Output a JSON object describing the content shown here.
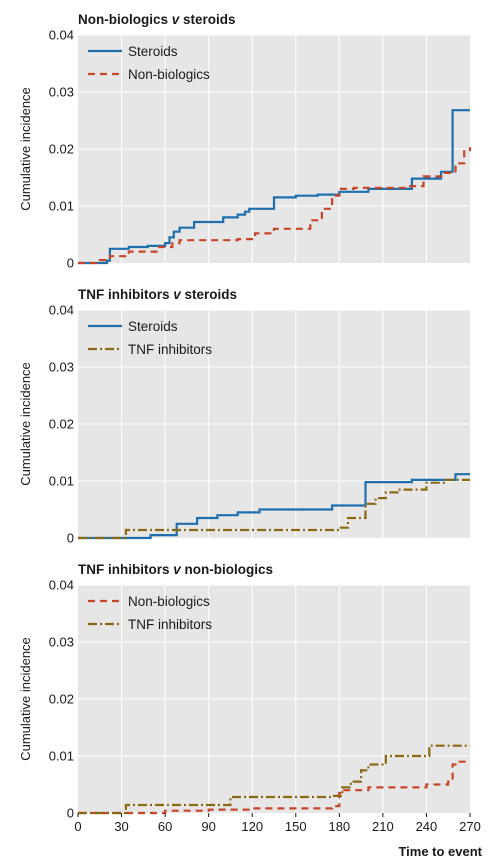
{
  "chart_data": [
    {
      "type": "line",
      "title": "Non-biologics",
      "title_italic": "v",
      "title_tail": "steroids",
      "ylabel": "Cumulative incidence",
      "xlim": [
        0,
        270
      ],
      "ylim": [
        0,
        0.04
      ],
      "yticks": [
        0,
        0.01,
        0.02,
        0.03,
        0.04
      ],
      "ytick_labels": [
        "0",
        "0.01",
        "0.02",
        "0.03",
        "0.04"
      ],
      "grid": true,
      "legend_position": "top-left",
      "series": [
        {
          "name": "Steroids",
          "color": "#1f6fad",
          "style": "solid",
          "points": [
            [
              0,
              0
            ],
            [
              20,
              0.0004
            ],
            [
              22,
              0.0025
            ],
            [
              35,
              0.0028
            ],
            [
              48,
              0.003
            ],
            [
              60,
              0.0035
            ],
            [
              63,
              0.0045
            ],
            [
              66,
              0.0055
            ],
            [
              70,
              0.0062
            ],
            [
              80,
              0.0072
            ],
            [
              100,
              0.008
            ],
            [
              110,
              0.0085
            ],
            [
              115,
              0.009
            ],
            [
              118,
              0.0095
            ],
            [
              135,
              0.0115
            ],
            [
              150,
              0.0118
            ],
            [
              165,
              0.012
            ],
            [
              180,
              0.0125
            ],
            [
              200,
              0.013
            ],
            [
              230,
              0.0148
            ],
            [
              250,
              0.016
            ],
            [
              258,
              0.0268
            ],
            [
              270,
              0.0268
            ]
          ]
        },
        {
          "name": "Non-biologics",
          "color": "#c6452b",
          "style": "dashed",
          "points": [
            [
              0,
              0
            ],
            [
              15,
              0.0005
            ],
            [
              22,
              0.0012
            ],
            [
              35,
              0.002
            ],
            [
              55,
              0.0028
            ],
            [
              65,
              0.0035
            ],
            [
              70,
              0.004
            ],
            [
              110,
              0.0042
            ],
            [
              122,
              0.0052
            ],
            [
              135,
              0.006
            ],
            [
              160,
              0.0075
            ],
            [
              168,
              0.0095
            ],
            [
              175,
              0.0118
            ],
            [
              180,
              0.013
            ],
            [
              190,
              0.0132
            ],
            [
              225,
              0.0135
            ],
            [
              238,
              0.0152
            ],
            [
              252,
              0.0158
            ],
            [
              260,
              0.0175
            ],
            [
              266,
              0.0198
            ],
            [
              270,
              0.0203
            ]
          ]
        }
      ]
    },
    {
      "type": "line",
      "title": "TNF inhibitors",
      "title_italic": "v",
      "title_tail": "steroids",
      "ylabel": "Cumulative incidence",
      "xlim": [
        0,
        270
      ],
      "ylim": [
        0,
        0.04
      ],
      "yticks": [
        0,
        0.01,
        0.02,
        0.03,
        0.04
      ],
      "ytick_labels": [
        "0",
        "0.01",
        "0.02",
        "0.03",
        "0.04"
      ],
      "grid": true,
      "legend_position": "top-left",
      "series": [
        {
          "name": "Steroids",
          "color": "#1f6fad",
          "style": "solid",
          "points": [
            [
              0,
              0
            ],
            [
              50,
              0.0005
            ],
            [
              68,
              0.0025
            ],
            [
              82,
              0.0035
            ],
            [
              96,
              0.004
            ],
            [
              110,
              0.0045
            ],
            [
              125,
              0.005
            ],
            [
              175,
              0.0057
            ],
            [
              198,
              0.0098
            ],
            [
              230,
              0.0102
            ],
            [
              260,
              0.0112
            ],
            [
              270,
              0.0112
            ]
          ]
        },
        {
          "name": "TNF inhibitors",
          "color": "#8b6914",
          "style": "dashdot",
          "points": [
            [
              0,
              0
            ],
            [
              33,
              0.0014
            ],
            [
              180,
              0.0018
            ],
            [
              186,
              0.0035
            ],
            [
              198,
              0.006
            ],
            [
              205,
              0.007
            ],
            [
              212,
              0.008
            ],
            [
              220,
              0.0085
            ],
            [
              240,
              0.0097
            ],
            [
              252,
              0.0102
            ],
            [
              270,
              0.0102
            ]
          ]
        }
      ]
    },
    {
      "type": "line",
      "title": "TNF inhibitors",
      "title_italic": "v",
      "title_tail": "non-biologics",
      "ylabel": "Cumulative incidence",
      "xlabel": "Time to event",
      "xlim": [
        0,
        270
      ],
      "ylim": [
        0,
        0.04
      ],
      "xticks": [
        0,
        30,
        60,
        90,
        120,
        150,
        180,
        210,
        240,
        270
      ],
      "xtick_labels": [
        "0",
        "30",
        "60",
        "90",
        "120",
        "150",
        "180",
        "210",
        "240",
        "270"
      ],
      "yticks": [
        0,
        0.01,
        0.02,
        0.03,
        0.04
      ],
      "ytick_labels": [
        "0",
        "0.01",
        "0.02",
        "0.03",
        "0.04"
      ],
      "grid": true,
      "legend_position": "top-left",
      "series": [
        {
          "name": "Non-biologics",
          "color": "#c6452b",
          "style": "dashed",
          "points": [
            [
              0,
              0
            ],
            [
              60,
              0.0004
            ],
            [
              90,
              0.0006
            ],
            [
              120,
              0.0008
            ],
            [
              175,
              0.0012
            ],
            [
              180,
              0.0035
            ],
            [
              182,
              0.004
            ],
            [
              200,
              0.0045
            ],
            [
              240,
              0.005
            ],
            [
              255,
              0.0055
            ],
            [
              258,
              0.0085
            ],
            [
              262,
              0.009
            ],
            [
              270,
              0.009
            ]
          ]
        },
        {
          "name": "TNF inhibitors",
          "color": "#8b6914",
          "style": "dashdot",
          "points": [
            [
              0,
              0
            ],
            [
              33,
              0.0014
            ],
            [
              105,
              0.0028
            ],
            [
              175,
              0.003
            ],
            [
              182,
              0.0045
            ],
            [
              188,
              0.0055
            ],
            [
              195,
              0.0075
            ],
            [
              200,
              0.0085
            ],
            [
              212,
              0.01
            ],
            [
              242,
              0.0118
            ],
            [
              270,
              0.0118
            ]
          ]
        }
      ]
    }
  ]
}
